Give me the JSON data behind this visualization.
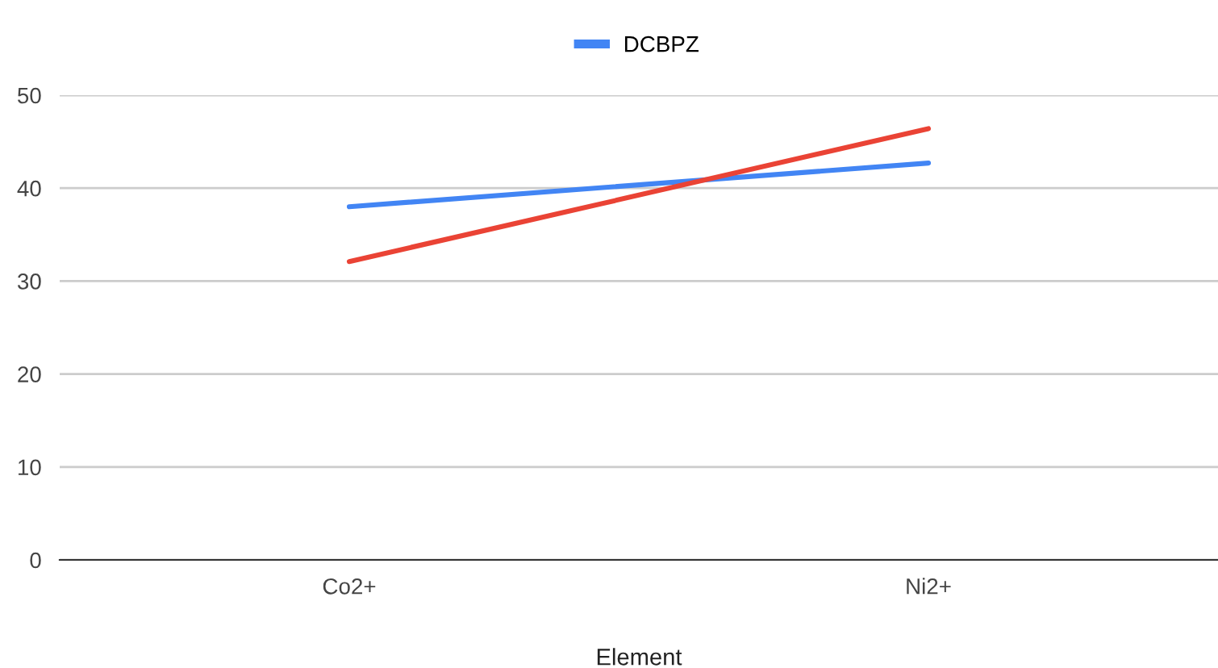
{
  "chart_data": {
    "type": "line",
    "xlabel": "Element",
    "categories": [
      "Co2+",
      "Ni2+"
    ],
    "series": [
      {
        "name": "DCBPZ",
        "color": "#4285f4",
        "values": [
          38.0,
          42.7
        ]
      },
      {
        "color": "#ea4335",
        "values": [
          32.1,
          46.4
        ]
      }
    ],
    "ylim": [
      0,
      50
    ],
    "yticks": [
      0,
      10,
      20,
      30,
      40,
      50
    ],
    "grid": "y",
    "legend": "top",
    "marker": "none",
    "line_style": "solid"
  }
}
